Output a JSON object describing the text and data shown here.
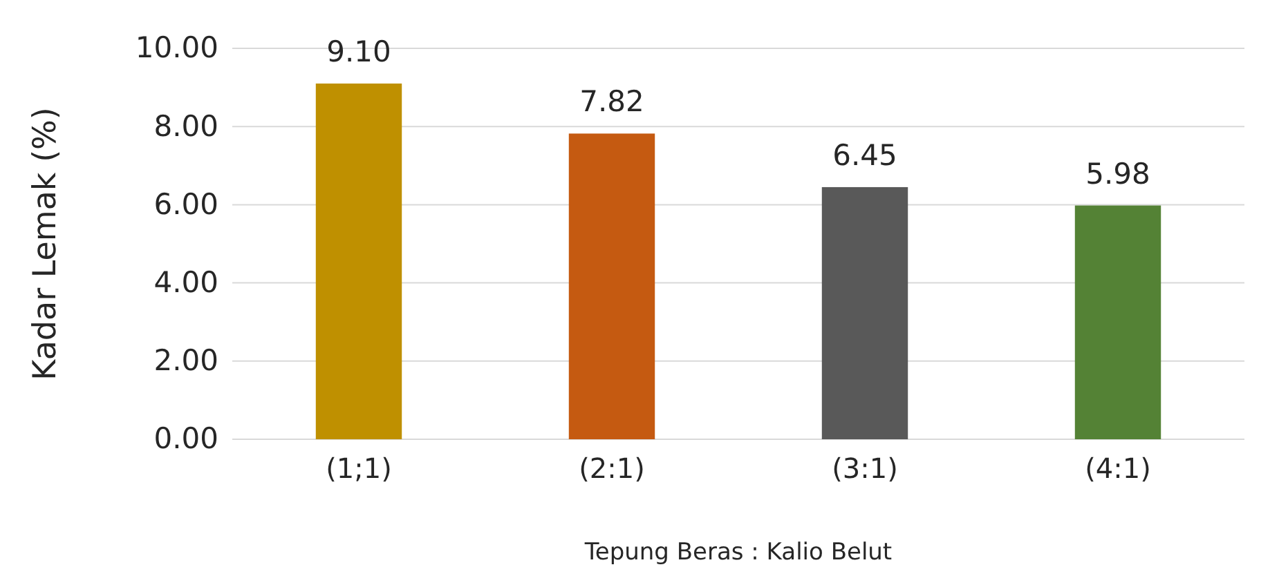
{
  "chart_data": {
    "type": "bar",
    "xlabel": "Tepung Beras : Kalio Belut",
    "ylabel": "Kadar Lemak (%)",
    "categories": [
      "(1;1)",
      "(2:1)",
      "(3:1)",
      "(4:1)"
    ],
    "values": [
      9.1,
      7.82,
      6.45,
      5.98
    ],
    "value_labels": [
      "9.10",
      "7.82",
      "6.45",
      "5.98"
    ],
    "colors": [
      "#bf9000",
      "#c55a11",
      "#595959",
      "#548235"
    ],
    "ylim": [
      0,
      10
    ],
    "yticks": [
      {
        "value": 0,
        "label": "0.00"
      },
      {
        "value": 2,
        "label": "2.00"
      },
      {
        "value": 4,
        "label": "4.00"
      },
      {
        "value": 6,
        "label": "6.00"
      },
      {
        "value": 8,
        "label": "8.00"
      },
      {
        "value": 10,
        "label": "10.00"
      }
    ],
    "grid": "y"
  }
}
